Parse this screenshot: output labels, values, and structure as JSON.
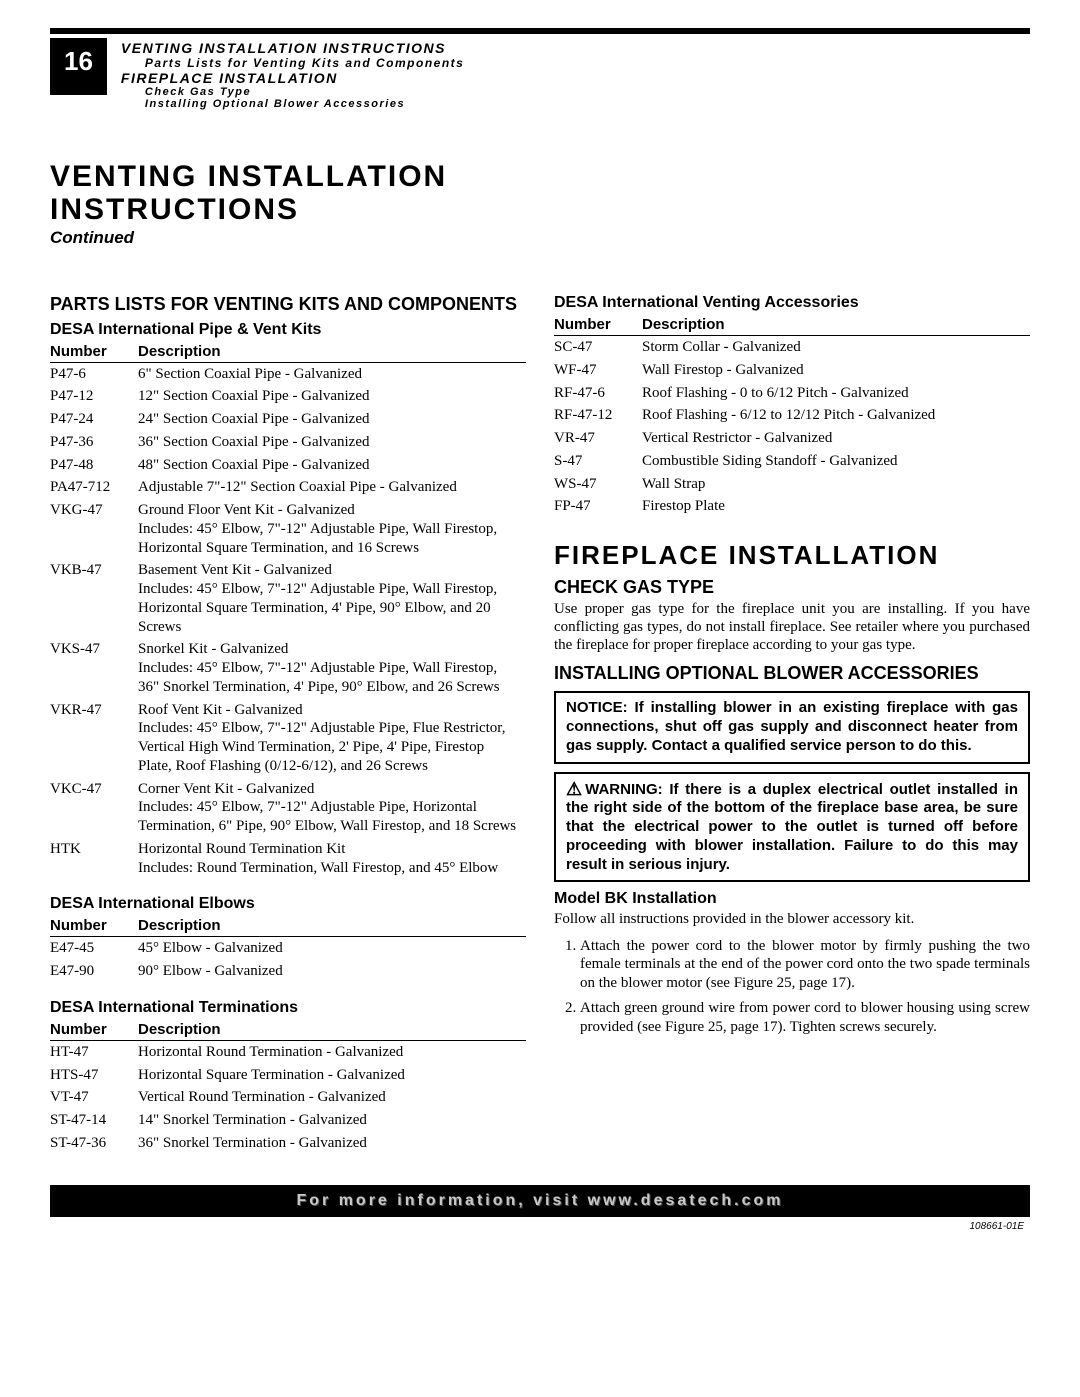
{
  "header": {
    "page_number": "16",
    "line1": "VENTING INSTALLATION INSTRUCTIONS",
    "line2": "Parts Lists for Venting Kits and Components",
    "line3": "FIREPLACE INSTALLATION",
    "line4": "Check Gas Type",
    "line5": "Installing Optional Blower Accessories"
  },
  "main_title_1": "VENTING INSTALLATION",
  "main_title_2": "INSTRUCTIONS",
  "continued": "Continued",
  "parts_section_title": "PARTS LISTS FOR VENTING KITS AND COMPONENTS",
  "table_header_number": "Number",
  "table_header_description": "Description",
  "pipe_kits": {
    "title": "DESA International Pipe & Vent Kits",
    "rows": [
      {
        "n": "P47-6",
        "d": "6\" Section Coaxial Pipe - Galvanized"
      },
      {
        "n": "P47-12",
        "d": "12\" Section Coaxial Pipe - Galvanized"
      },
      {
        "n": "P47-24",
        "d": "24\" Section Coaxial Pipe - Galvanized"
      },
      {
        "n": "P47-36",
        "d": "36\" Section Coaxial Pipe - Galvanized"
      },
      {
        "n": "P47-48",
        "d": "48\" Section Coaxial Pipe - Galvanized"
      },
      {
        "n": "PA47-712",
        "d": "Adjustable 7\"-12\" Section Coaxial Pipe - Galvanized"
      },
      {
        "n": "VKG-47",
        "d": "Ground Floor Vent Kit - Galvanized\nIncludes: 45° Elbow, 7\"-12\" Adjustable Pipe, Wall Firestop, Horizontal Square Termination, and 16 Screws"
      },
      {
        "n": "VKB-47",
        "d": "Basement Vent Kit - Galvanized\nIncludes: 45° Elbow, 7\"-12\" Adjustable Pipe, Wall Firestop, Horizontal Square Termination, 4' Pipe, 90° Elbow, and 20 Screws"
      },
      {
        "n": "VKS-47",
        "d": "Snorkel Kit - Galvanized\nIncludes: 45° Elbow, 7\"-12\" Adjustable Pipe, Wall Firestop, 36\" Snorkel Termination, 4' Pipe, 90° Elbow, and 26 Screws"
      },
      {
        "n": "VKR-47",
        "d": "Roof Vent Kit - Galvanized\nIncludes: 45° Elbow, 7\"-12\" Adjustable Pipe, Flue Restrictor, Vertical High Wind Termination, 2' Pipe, 4' Pipe, Firestop Plate, Roof Flashing (0/12-6/12), and 26 Screws"
      },
      {
        "n": "VKC-47",
        "d": "Corner Vent Kit - Galvanized\nIncludes: 45° Elbow, 7\"-12\" Adjustable Pipe, Horizontal Termination, 6\" Pipe, 90° Elbow, Wall Firestop, and 18 Screws"
      },
      {
        "n": "HTK",
        "d": "Horizontal Round Termination Kit\nIncludes: Round Termination, Wall Firestop, and 45° Elbow"
      }
    ]
  },
  "elbows": {
    "title": "DESA International Elbows",
    "rows": [
      {
        "n": "E47-45",
        "d": "45° Elbow - Galvanized"
      },
      {
        "n": "E47-90",
        "d": "90° Elbow - Galvanized"
      }
    ]
  },
  "terminations": {
    "title": "DESA International Terminations",
    "rows": [
      {
        "n": "HT-47",
        "d": "Horizontal Round Termination - Galvanized"
      },
      {
        "n": "HTS-47",
        "d": "Horizontal Square Termination - Galvanized"
      },
      {
        "n": "VT-47",
        "d": "Vertical Round Termination - Galvanized"
      },
      {
        "n": "ST-47-14",
        "d": "14\" Snorkel Termination - Galvanized"
      },
      {
        "n": "ST-47-36",
        "d": "36\" Snorkel Termination - Galvanized"
      }
    ]
  },
  "accessories": {
    "title": "DESA International Venting Accessories",
    "rows": [
      {
        "n": "SC-47",
        "d": "Storm Collar - Galvanized"
      },
      {
        "n": "WF-47",
        "d": "Wall Firestop - Galvanized"
      },
      {
        "n": "RF-47-6",
        "d": "Roof Flashing - 0 to 6/12 Pitch - Galvanized"
      },
      {
        "n": "RF-47-12",
        "d": "Roof Flashing - 6/12 to 12/12 Pitch - Galvanized"
      },
      {
        "n": "VR-47",
        "d": "Vertical Restrictor - Galvanized"
      },
      {
        "n": "S-47",
        "d": "Combustible Siding Standoff - Galvanized"
      },
      {
        "n": "WS-47",
        "d": "Wall Strap"
      },
      {
        "n": "FP-47",
        "d": "Firestop Plate"
      }
    ]
  },
  "fireplace": {
    "title": "FIREPLACE INSTALLATION",
    "check_gas_title": "CHECK GAS TYPE",
    "check_gas_body": "Use proper gas type for the fireplace unit you are installing. If you have conflicting gas types, do not install fireplace. See retailer where you purchased the fireplace for proper fireplace according to your gas type.",
    "blower_title": "INSTALLING OPTIONAL BLOWER ACCESSORIES",
    "notice": "NOTICE: If installing blower in an existing fireplace with gas connections, shut off gas supply and disconnect heater from gas supply. Contact a qualified service person to do this.",
    "warning": "WARNING: If there is a duplex electrical outlet installed in the right side of the bottom of the fireplace base area, be sure that the electrical power to the outlet is turned off before proceeding with blower installation. Failure to do this may result in serious injury.",
    "model_bk_title": "Model BK Installation",
    "model_bk_intro": "Follow all instructions provided in the blower accessory kit.",
    "steps": [
      "Attach the power cord to the blower motor by firmly pushing the two female terminals at the end of the power cord onto the two spade terminals on the blower motor (see Figure 25, page 17).",
      "Attach green ground wire from power cord to blower housing using screw provided (see Figure 25, page 17). Tighten screws securely."
    ]
  },
  "footer": {
    "text": "For more information, visit www.desatech.com",
    "docnum": "108661-01E"
  },
  "colors": {
    "black": "#000000",
    "white": "#ffffff",
    "footer_text": "#c8c8c8"
  }
}
